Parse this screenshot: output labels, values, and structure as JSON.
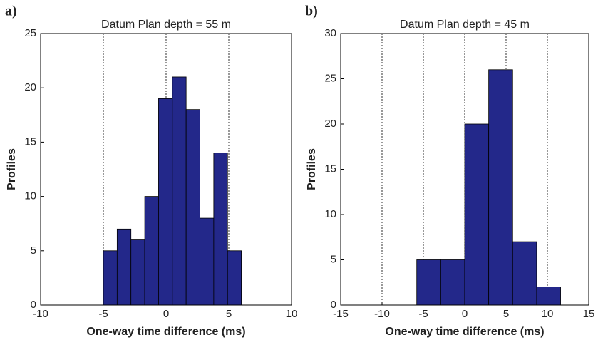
{
  "chart_data": [
    {
      "type": "histogram",
      "panel_label": "a)",
      "title": "Datum Plan depth = 55 m",
      "xlabel": "One-way time difference (ms)",
      "ylabel": "Profiles",
      "bins": [
        -5,
        -3.9,
        -2.8,
        -1.7,
        -0.6,
        0.5,
        1.6,
        2.7,
        3.8,
        4.9,
        6.0
      ],
      "values": [
        5,
        7,
        6,
        10,
        19,
        21,
        18,
        8,
        14,
        5
      ],
      "color": "#23288a",
      "xlim": [
        -10,
        10
      ],
      "xticks": [
        -10,
        -5,
        0,
        5,
        10
      ],
      "ylim": [
        0,
        25
      ],
      "yticks": [
        0,
        5,
        10,
        15,
        20,
        25
      ],
      "xgrid": true
    },
    {
      "type": "histogram",
      "panel_label": "b)",
      "title": "Datum Plan depth = 45 m",
      "xlabel": "One-way time difference (ms)",
      "ylabel": "Profiles",
      "bins": [
        -5.8,
        -2.9,
        0,
        2.9,
        5.8,
        8.7,
        11.6
      ],
      "values": [
        5,
        5,
        20,
        26,
        7,
        2
      ],
      "color": "#23288a",
      "xlim": [
        -15,
        15
      ],
      "xticks": [
        -15,
        -10,
        -5,
        0,
        5,
        10,
        15
      ],
      "ylim": [
        0,
        30
      ],
      "yticks": [
        0,
        5,
        10,
        15,
        20,
        25,
        30
      ],
      "xgrid": true
    }
  ]
}
